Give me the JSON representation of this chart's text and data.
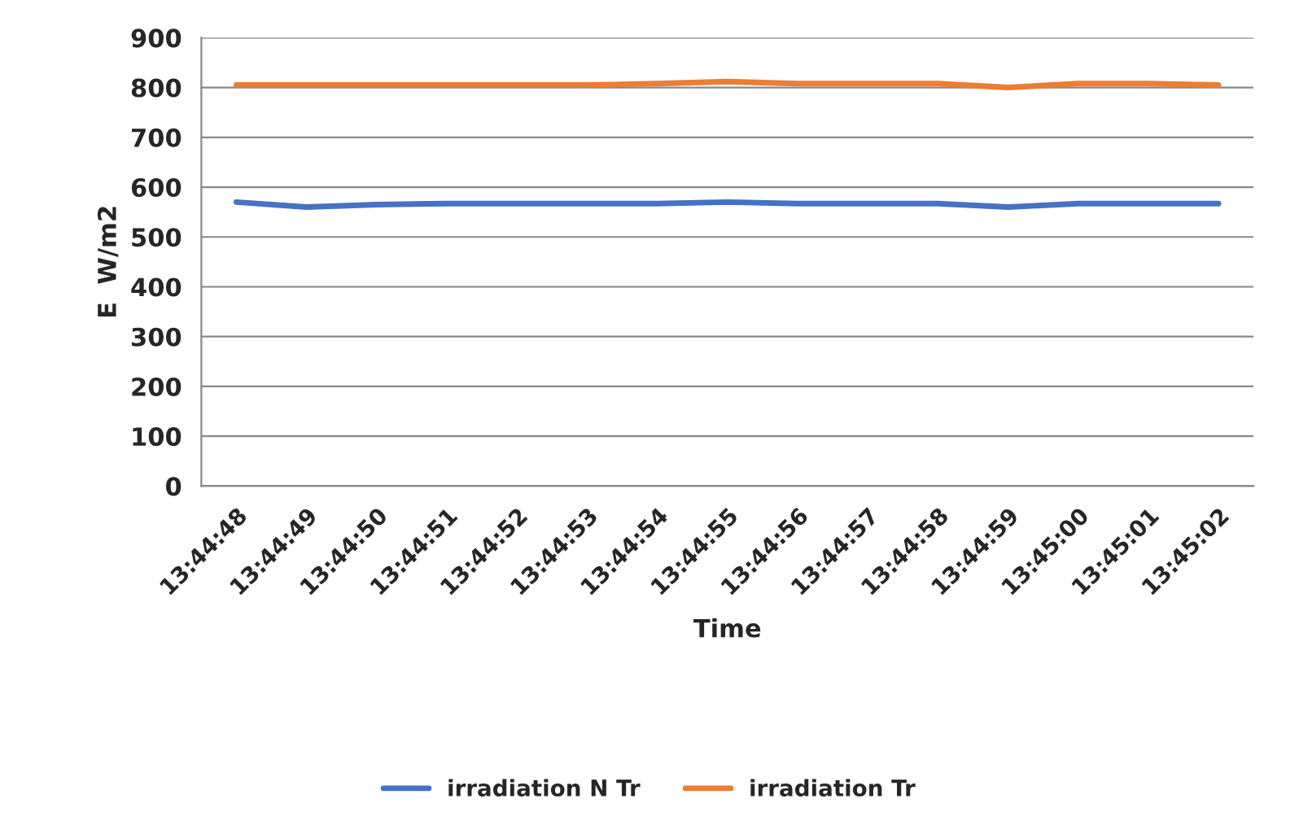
{
  "chart_data": {
    "type": "line",
    "xlabel": "Time",
    "ylabel": "E  W/m2",
    "categories": [
      "13:44:48",
      "13:44:49",
      "13:44:50",
      "13:44:51",
      "13:44:52",
      "13:44:53",
      "13:44:54",
      "13:44:55",
      "13:44:56",
      "13:44:57",
      "13:44:58",
      "13:44:59",
      "13:45:00",
      "13:45:01",
      "13:45:02"
    ],
    "series": [
      {
        "name": "irradiation N Tr",
        "color": "#4472c4",
        "values": [
          570,
          560,
          565,
          567,
          567,
          567,
          567,
          570,
          567,
          567,
          567,
          560,
          567,
          567,
          567
        ]
      },
      {
        "name": "irradiation Tr",
        "color": "#ed7d31",
        "values": [
          805,
          805,
          805,
          805,
          805,
          805,
          808,
          812,
          808,
          808,
          808,
          800,
          808,
          808,
          805
        ]
      }
    ],
    "ylim": [
      0,
      900
    ],
    "yticks": [
      0,
      100,
      200,
      300,
      400,
      500,
      600,
      700,
      800,
      900
    ],
    "grid": "y",
    "legend": "bottom",
    "marker": "none",
    "line_style": "solid"
  }
}
